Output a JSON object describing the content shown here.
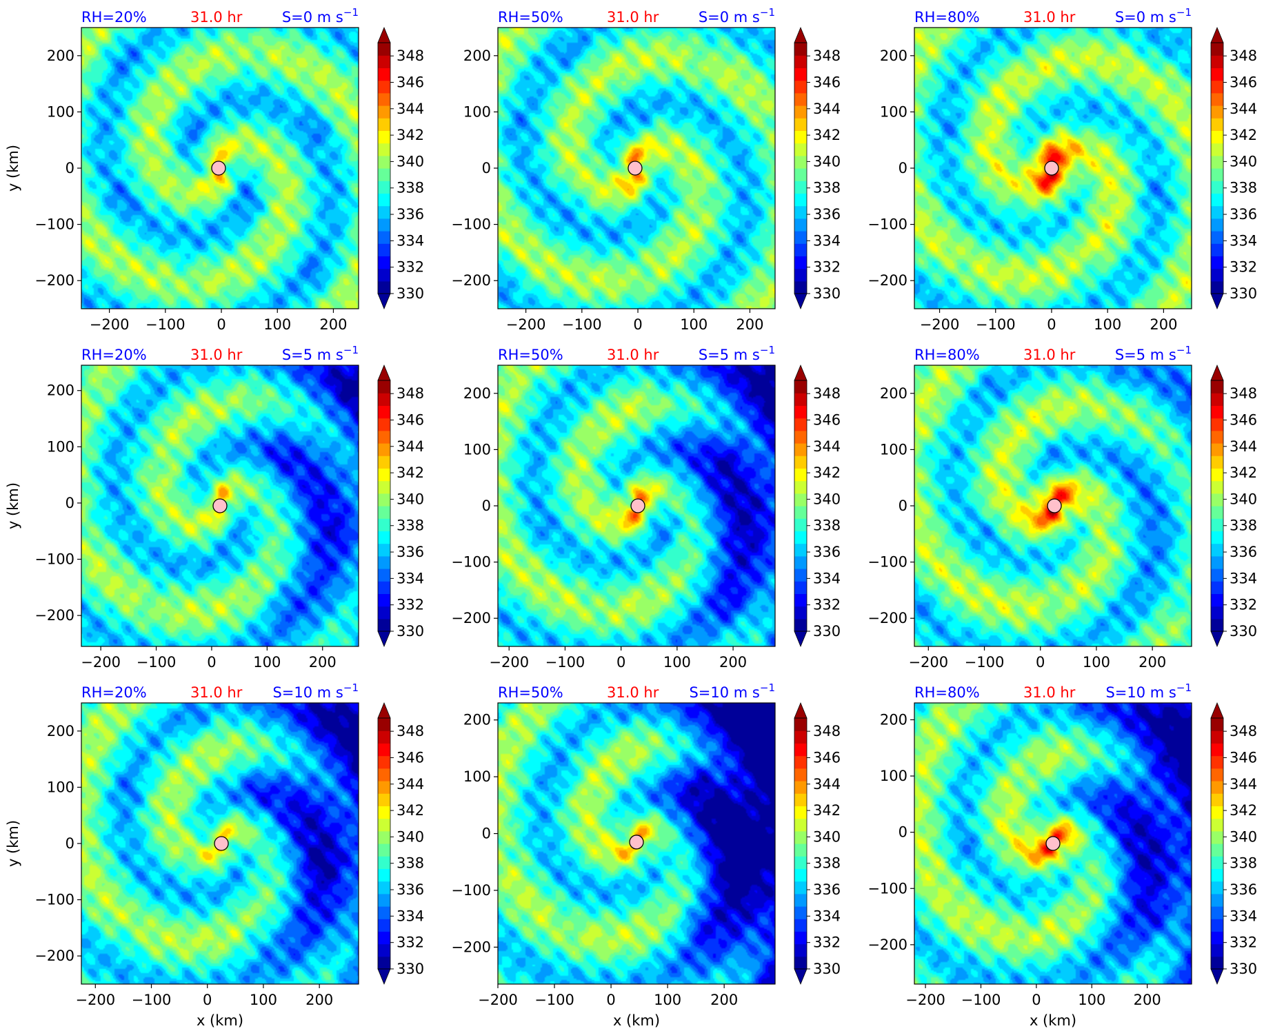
{
  "chart_data": {
    "type": "heatmap",
    "variable_colorbar": {
      "ticks": [
        330,
        332,
        334,
        336,
        338,
        340,
        342,
        344,
        346,
        348
      ],
      "range": [
        330,
        349
      ],
      "extend": "both",
      "colormap": "jet"
    },
    "panels": [
      {
        "rh_label": "RH=20%",
        "time_label": "31.0 hr",
        "shear_label": "S=0 m s",
        "shear_exp": "−1",
        "xlim": [
          -250,
          245
        ],
        "ylim": [
          -250,
          250
        ],
        "center": [
          -5,
          0
        ],
        "intensity": 0.35,
        "gap": 0.0,
        "xticks": [
          -200,
          -100,
          0,
          100,
          200
        ],
        "yticks": [
          -200,
          -100,
          0,
          100,
          200
        ],
        "xtick_labels": [
          "−200",
          "−100",
          "0",
          "100",
          "200"
        ],
        "ytick_labels": [
          "−200",
          "−100",
          "0",
          "100",
          "200"
        ],
        "ylabel": "y (km)",
        "xlabel": ""
      },
      {
        "rh_label": "RH=50%",
        "time_label": "31.0 hr",
        "shear_label": "S=0 m s",
        "shear_exp": "−1",
        "xlim": [
          -250,
          245
        ],
        "ylim": [
          -250,
          250
        ],
        "center": [
          -5,
          0
        ],
        "intensity": 0.45,
        "gap": 0.0,
        "xticks": [
          -200,
          -100,
          0,
          100,
          200
        ],
        "yticks": [
          -200,
          -100,
          0,
          100,
          200
        ],
        "xtick_labels": [
          "−200",
          "−100",
          "0",
          "100",
          "200"
        ],
        "ytick_labels": [
          "−200",
          "−100",
          "0",
          "100",
          "200"
        ],
        "ylabel": "",
        "xlabel": ""
      },
      {
        "rh_label": "RH=80%",
        "time_label": "31.0 hr",
        "shear_label": "S=0 m s",
        "shear_exp": "−1",
        "xlim": [
          -245,
          250
        ],
        "ylim": [
          -250,
          250
        ],
        "center": [
          0,
          0
        ],
        "intensity": 0.7,
        "gap": 0.0,
        "xticks": [
          -200,
          -100,
          0,
          100,
          200
        ],
        "yticks": [
          -200,
          -100,
          0,
          100,
          200
        ],
        "xtick_labels": [
          "−200",
          "−100",
          "0",
          "100",
          "200"
        ],
        "ytick_labels": [
          "−200",
          "−100",
          "0",
          "100",
          "200"
        ],
        "ylabel": "",
        "xlabel": ""
      },
      {
        "rh_label": "RH=20%",
        "time_label": "31.0 hr",
        "shear_label": "S=5 m s",
        "shear_exp": "−1",
        "xlim": [
          -235,
          265
        ],
        "ylim": [
          -255,
          245
        ],
        "center": [
          15,
          -5
        ],
        "intensity": 0.35,
        "gap": 0.25,
        "xticks": [
          -200,
          -100,
          0,
          100,
          200
        ],
        "yticks": [
          -200,
          -100,
          0,
          100,
          200
        ],
        "xtick_labels": [
          "−200",
          "−100",
          "0",
          "100",
          "200"
        ],
        "ytick_labels": [
          "−200",
          "−100",
          "0",
          "100",
          "200"
        ],
        "ylabel": "y (km)",
        "xlabel": ""
      },
      {
        "rh_label": "RH=50%",
        "time_label": "31.0 hr",
        "shear_label": "S=5 m s",
        "shear_exp": "−1",
        "xlim": [
          -220,
          275
        ],
        "ylim": [
          -250,
          250
        ],
        "center": [
          30,
          0
        ],
        "intensity": 0.45,
        "gap": 0.35,
        "xticks": [
          -200,
          -100,
          0,
          100,
          200
        ],
        "yticks": [
          -200,
          -100,
          0,
          100,
          200
        ],
        "xtick_labels": [
          "−200",
          "−100",
          "0",
          "100",
          "200"
        ],
        "ytick_labels": [
          "−200",
          "−100",
          "0",
          "100",
          "200"
        ],
        "ylabel": "",
        "xlabel": ""
      },
      {
        "rh_label": "RH=80%",
        "time_label": "31.0 hr",
        "shear_label": "S=5 m s",
        "shear_exp": "−1",
        "xlim": [
          -225,
          270
        ],
        "ylim": [
          -250,
          250
        ],
        "center": [
          25,
          0
        ],
        "intensity": 0.65,
        "gap": 0.1,
        "xticks": [
          -200,
          -100,
          0,
          100,
          200
        ],
        "yticks": [
          -200,
          -100,
          0,
          100,
          200
        ],
        "xtick_labels": [
          "−200",
          "−100",
          "0",
          "100",
          "200"
        ],
        "ytick_labels": [
          "−200",
          "−100",
          "0",
          "100",
          "200"
        ],
        "ylabel": "",
        "xlabel": ""
      },
      {
        "rh_label": "RH=20%",
        "time_label": "31.0 hr",
        "shear_label": "S=10 m s",
        "shear_exp": "−1",
        "xlim": [
          -225,
          270
        ],
        "ylim": [
          -250,
          250
        ],
        "center": [
          25,
          0
        ],
        "intensity": 0.35,
        "gap": 0.35,
        "xticks": [
          -200,
          -100,
          0,
          100,
          200
        ],
        "yticks": [
          -200,
          -100,
          0,
          100,
          200
        ],
        "xtick_labels": [
          "−200",
          "−100",
          "0",
          "100",
          "200"
        ],
        "ytick_labels": [
          "−200",
          "−100",
          "0",
          "100",
          "200"
        ],
        "ylabel": "y (km)",
        "xlabel": "x (km)"
      },
      {
        "rh_label": "RH=50%",
        "time_label": "31.0 hr",
        "shear_label": "S=10 m s",
        "shear_exp": "−1",
        "xlim": [
          -200,
          290
        ],
        "ylim": [
          -265,
          230
        ],
        "center": [
          45,
          -15
        ],
        "intensity": 0.45,
        "gap": 0.55,
        "xticks": [
          -200,
          -100,
          0,
          100,
          200
        ],
        "yticks": [
          -200,
          -100,
          0,
          100,
          200
        ],
        "xtick_labels": [
          "−200",
          "−100",
          "0",
          "100",
          "200"
        ],
        "ytick_labels": [
          "−200",
          "−100",
          "0",
          "100",
          "200"
        ],
        "ylabel": "",
        "xlabel": "x (km)"
      },
      {
        "rh_label": "RH=80%",
        "time_label": "31.0 hr",
        "shear_label": "S=10 m s",
        "shear_exp": "−1",
        "xlim": [
          -220,
          280
        ],
        "ylim": [
          -270,
          230
        ],
        "center": [
          30,
          -20
        ],
        "intensity": 0.6,
        "gap": 0.4,
        "xticks": [
          -200,
          -100,
          0,
          100,
          200
        ],
        "yticks": [
          -200,
          -100,
          0,
          100,
          200
        ],
        "xtick_labels": [
          "−200",
          "−100",
          "0",
          "100",
          "200"
        ],
        "ytick_labels": [
          "−200",
          "−100",
          "0",
          "100",
          "200"
        ],
        "ylabel": "",
        "xlabel": "x (km)"
      }
    ]
  },
  "colors": {
    "rh_label": "#0000ff",
    "time_label": "#ff0000",
    "shear_label": "#0000ff",
    "marker_fill": "#ffc0cb",
    "marker_edge": "#000000"
  }
}
